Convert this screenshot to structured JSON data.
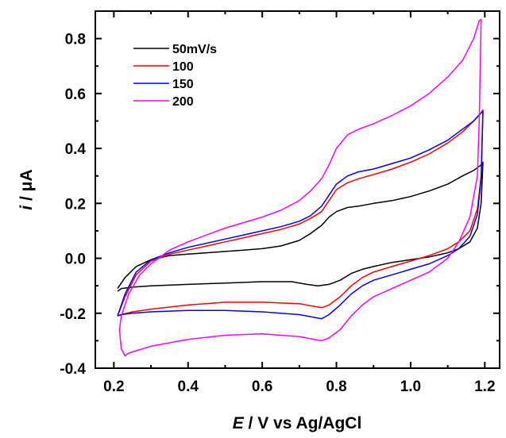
{
  "chart_data": {
    "type": "line",
    "title": "",
    "xlabel": {
      "symbol": "E",
      "rest": " / V vs Ag/AgCl"
    },
    "ylabel": {
      "symbol": "i",
      "rest": " / μA"
    },
    "xlim": [
      0.15,
      1.24
    ],
    "ylim": [
      -0.4,
      0.9
    ],
    "xticks": [
      "0.2",
      "0.4",
      "0.6",
      "0.8",
      "1.0",
      "1.2"
    ],
    "yticks": [
      "-0.4",
      "-0.2",
      "0.0",
      "0.2",
      "0.4",
      "0.6",
      "0.8"
    ],
    "grid": false,
    "legend_position": "top-left",
    "series": [
      {
        "name": "50mV/s",
        "color": "#000000",
        "x": [
          0.21,
          0.23,
          0.26,
          0.3,
          0.35,
          0.4,
          0.45,
          0.5,
          0.55,
          0.6,
          0.65,
          0.7,
          0.73,
          0.76,
          0.78,
          0.8,
          0.83,
          0.86,
          0.9,
          0.95,
          1.0,
          1.05,
          1.1,
          1.14,
          1.17,
          1.19,
          1.195,
          1.19,
          1.18,
          1.16,
          1.13,
          1.1,
          1.05,
          1.0,
          0.95,
          0.9,
          0.87,
          0.84,
          0.81,
          0.78,
          0.75,
          0.72,
          0.68,
          0.6,
          0.5,
          0.4,
          0.3,
          0.25,
          0.22,
          0.21
        ],
        "y": [
          -0.11,
          -0.07,
          -0.03,
          -0.005,
          0.01,
          0.015,
          0.02,
          0.025,
          0.03,
          0.035,
          0.045,
          0.065,
          0.09,
          0.12,
          0.15,
          0.17,
          0.185,
          0.19,
          0.2,
          0.21,
          0.225,
          0.245,
          0.27,
          0.3,
          0.32,
          0.34,
          0.35,
          0.2,
          0.11,
          0.06,
          0.035,
          0.02,
          0.005,
          -0.005,
          -0.015,
          -0.03,
          -0.04,
          -0.055,
          -0.08,
          -0.095,
          -0.1,
          -0.095,
          -0.085,
          -0.085,
          -0.09,
          -0.095,
          -0.1,
          -0.105,
          -0.11,
          -0.12
        ]
      },
      {
        "name": "100",
        "color": "#ff0000",
        "x": [
          0.21,
          0.23,
          0.26,
          0.3,
          0.35,
          0.4,
          0.45,
          0.5,
          0.55,
          0.6,
          0.65,
          0.7,
          0.73,
          0.76,
          0.78,
          0.8,
          0.83,
          0.86,
          0.9,
          0.95,
          1.0,
          1.05,
          1.1,
          1.14,
          1.17,
          1.19,
          1.195,
          1.19,
          1.18,
          1.16,
          1.13,
          1.1,
          1.05,
          1.0,
          0.95,
          0.9,
          0.87,
          0.84,
          0.81,
          0.78,
          0.76,
          0.74,
          0.7,
          0.6,
          0.5,
          0.4,
          0.3,
          0.25,
          0.22,
          0.21
        ],
        "y": [
          -0.21,
          -0.14,
          -0.06,
          -0.01,
          0.015,
          0.03,
          0.045,
          0.06,
          0.075,
          0.09,
          0.105,
          0.125,
          0.145,
          0.17,
          0.21,
          0.25,
          0.275,
          0.29,
          0.305,
          0.325,
          0.35,
          0.38,
          0.42,
          0.46,
          0.5,
          0.53,
          0.54,
          0.3,
          0.18,
          0.1,
          0.06,
          0.035,
          0.01,
          -0.01,
          -0.03,
          -0.05,
          -0.07,
          -0.1,
          -0.14,
          -0.17,
          -0.18,
          -0.175,
          -0.165,
          -0.16,
          -0.16,
          -0.17,
          -0.185,
          -0.195,
          -0.205,
          -0.21
        ]
      },
      {
        "name": "150",
        "color": "#0000ff",
        "x": [
          0.21,
          0.23,
          0.26,
          0.3,
          0.35,
          0.4,
          0.45,
          0.5,
          0.55,
          0.6,
          0.65,
          0.7,
          0.73,
          0.76,
          0.78,
          0.8,
          0.83,
          0.86,
          0.9,
          0.95,
          1.0,
          1.05,
          1.1,
          1.14,
          1.17,
          1.19,
          1.195,
          1.19,
          1.18,
          1.16,
          1.13,
          1.1,
          1.05,
          1.0,
          0.95,
          0.9,
          0.87,
          0.84,
          0.81,
          0.78,
          0.76,
          0.74,
          0.7,
          0.6,
          0.5,
          0.4,
          0.3,
          0.25,
          0.22,
          0.21
        ],
        "y": [
          -0.21,
          -0.13,
          -0.05,
          -0.005,
          0.02,
          0.04,
          0.055,
          0.07,
          0.085,
          0.1,
          0.115,
          0.135,
          0.155,
          0.19,
          0.23,
          0.27,
          0.3,
          0.315,
          0.325,
          0.345,
          0.365,
          0.395,
          0.43,
          0.47,
          0.5,
          0.53,
          0.535,
          0.29,
          0.16,
          0.08,
          0.035,
          0.01,
          -0.02,
          -0.04,
          -0.06,
          -0.08,
          -0.1,
          -0.13,
          -0.17,
          -0.205,
          -0.22,
          -0.215,
          -0.205,
          -0.195,
          -0.19,
          -0.19,
          -0.195,
          -0.2,
          -0.205,
          -0.21
        ]
      },
      {
        "name": "200",
        "color": "#ff00ff",
        "x": [
          0.215,
          0.22,
          0.24,
          0.27,
          0.3,
          0.35,
          0.4,
          0.45,
          0.5,
          0.55,
          0.6,
          0.65,
          0.7,
          0.73,
          0.76,
          0.78,
          0.8,
          0.83,
          0.86,
          0.9,
          0.95,
          1.0,
          1.05,
          1.1,
          1.14,
          1.17,
          1.185,
          1.19,
          1.185,
          1.18,
          1.16,
          1.13,
          1.1,
          1.05,
          1.0,
          0.95,
          0.9,
          0.87,
          0.84,
          0.81,
          0.78,
          0.76,
          0.74,
          0.7,
          0.6,
          0.5,
          0.4,
          0.3,
          0.24,
          0.23,
          0.22,
          0.215
        ],
        "y": [
          -0.26,
          -0.21,
          -0.13,
          -0.06,
          -0.02,
          0.03,
          0.06,
          0.085,
          0.11,
          0.13,
          0.15,
          0.175,
          0.21,
          0.245,
          0.29,
          0.34,
          0.4,
          0.45,
          0.47,
          0.49,
          0.52,
          0.555,
          0.6,
          0.66,
          0.72,
          0.8,
          0.865,
          0.87,
          0.5,
          0.3,
          0.15,
          0.06,
          0.0,
          -0.05,
          -0.08,
          -0.11,
          -0.14,
          -0.17,
          -0.21,
          -0.26,
          -0.29,
          -0.3,
          -0.295,
          -0.285,
          -0.275,
          -0.28,
          -0.295,
          -0.32,
          -0.345,
          -0.355,
          -0.33,
          -0.26
        ]
      }
    ]
  }
}
